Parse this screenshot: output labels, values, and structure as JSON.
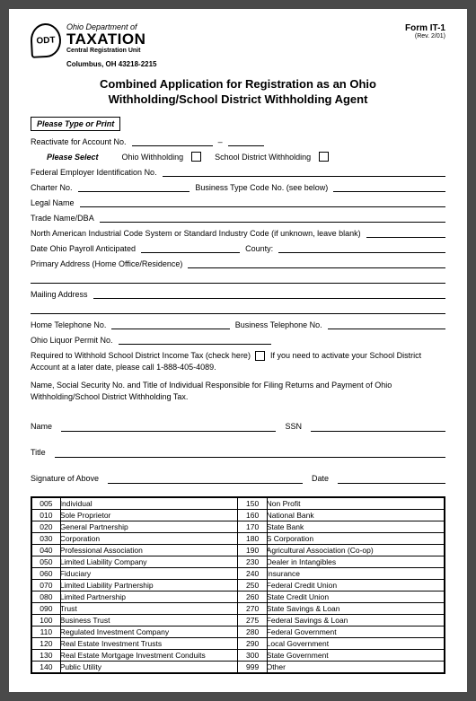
{
  "header": {
    "logo_text": "ODT",
    "dept_of": "Ohio Department of",
    "taxation": "TAXATION",
    "subunit": "Central Registration Unit",
    "city": "Columbus, OH  43218-2215",
    "form_no": "Form IT-1",
    "rev": "(Rev. 2/01)"
  },
  "title": "Combined Application for Registration as an Ohio Withholding/School District Withholding Agent",
  "labels": {
    "please_type": "Please Type or Print",
    "reactivate": "Reactivate for Account No.",
    "please_select": "Please Select",
    "ohio_wh": "Ohio Withholding",
    "sd_wh": "School District Withholding",
    "fein": "Federal Employer Identification No.",
    "charter": "Charter No.",
    "biz_type": "Business Type Code No. (see below)",
    "legal_name": "Legal Name",
    "trade_name": "Trade Name/DBA",
    "naics": "North American Industrial Code System or Standard Industry Code (if unknown, leave blank)",
    "date_payroll": "Date Ohio Payroll Anticipated",
    "county": "County:",
    "primary_addr": "Primary Address (Home Office/Residence)",
    "mailing_addr": "Mailing Address",
    "home_phone": "Home Telephone No.",
    "biz_phone": "Business Telephone No.",
    "liquor": "Ohio Liquor Permit No.",
    "required_wh": "Required to Withhold School District Income Tax (check here)",
    "activate_note": "If you need to activate your School District Account at a later date, please call 1-888-405-4089.",
    "responsible": "Name, Social Security No. and Title of Individual Responsible for Filing Returns and Payment of Ohio Withholding/School District Withholding Tax.",
    "name": "Name",
    "ssn": "SSN",
    "title_f": "Title",
    "signature": "Signature of Above",
    "date": "Date"
  },
  "codes_left": [
    {
      "c": "005",
      "d": "Individual"
    },
    {
      "c": "010",
      "d": "Sole Proprietor"
    },
    {
      "c": "020",
      "d": "General Partnership"
    },
    {
      "c": "030",
      "d": "Corporation"
    },
    {
      "c": "040",
      "d": "Professional Association"
    },
    {
      "c": "050",
      "d": "Limited Liability Company"
    },
    {
      "c": "060",
      "d": "Fiduciary"
    },
    {
      "c": "070",
      "d": "Limited Liability Partnership"
    },
    {
      "c": "080",
      "d": "Limited Partnership"
    },
    {
      "c": "090",
      "d": "Trust"
    },
    {
      "c": "100",
      "d": "Business Trust"
    },
    {
      "c": "110",
      "d": "Regulated Investment Company"
    },
    {
      "c": "120",
      "d": "Real Estate Investment Trusts"
    },
    {
      "c": "130",
      "d": "Real Estate Mortgage Investment Conduits"
    },
    {
      "c": "140",
      "d": "Public Utility"
    }
  ],
  "codes_right": [
    {
      "c": "150",
      "d": "Non Profit"
    },
    {
      "c": "160",
      "d": "National Bank"
    },
    {
      "c": "170",
      "d": "State Bank"
    },
    {
      "c": "180",
      "d": "S Corporation"
    },
    {
      "c": "190",
      "d": "Agricultural Association (Co-op)"
    },
    {
      "c": "230",
      "d": "Dealer in Intangibles"
    },
    {
      "c": "240",
      "d": "Insurance"
    },
    {
      "c": "250",
      "d": "Federal Credit Union"
    },
    {
      "c": "260",
      "d": "State Credit Union"
    },
    {
      "c": "270",
      "d": "State Savings & Loan"
    },
    {
      "c": "275",
      "d": "Federal Savings & Loan"
    },
    {
      "c": "280",
      "d": "Federal Government"
    },
    {
      "c": "290",
      "d": "Local Government"
    },
    {
      "c": "300",
      "d": "State Government"
    },
    {
      "c": "999",
      "d": "Other"
    }
  ]
}
